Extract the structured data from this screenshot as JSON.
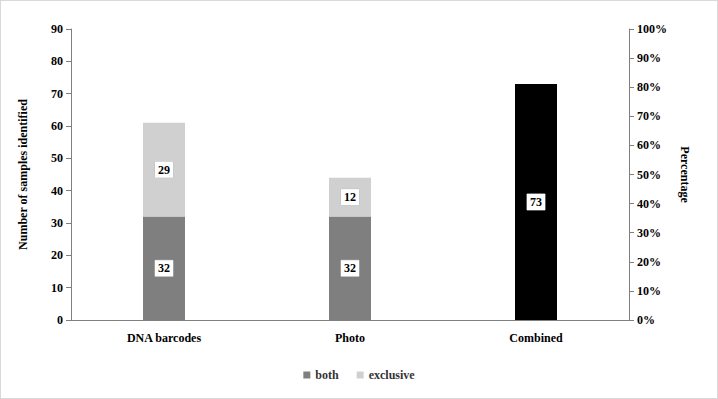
{
  "chart_data": {
    "type": "bar",
    "categories": [
      "DNA barcodes",
      "Photo",
      "Combined"
    ],
    "series": [
      {
        "name": "both",
        "color": "#7f7f7f",
        "values": [
          32,
          32,
          null
        ]
      },
      {
        "name": "exclusive",
        "color": "#d0d0d0",
        "values": [
          29,
          12,
          null
        ]
      },
      {
        "color": "#000000",
        "values": [
          null,
          null,
          73
        ]
      }
    ],
    "stacked": true,
    "data_labels": true,
    "ylabel": "Number of samples identified",
    "ylim": [
      0,
      90
    ],
    "yticks": [
      0,
      10,
      20,
      30,
      40,
      50,
      60,
      70,
      80,
      90
    ],
    "y2label": "Percentage",
    "y2lim": [
      0,
      100
    ],
    "y2ticks": [
      {
        "value": 0,
        "label": "0%"
      },
      {
        "value": 10,
        "label": "10%"
      },
      {
        "value": 20,
        "label": "20%"
      },
      {
        "value": 30,
        "label": "30%"
      },
      {
        "value": 40,
        "label": "40%"
      },
      {
        "value": 50,
        "label": "50%"
      },
      {
        "value": 60,
        "label": "60%"
      },
      {
        "value": 70,
        "label": "70%"
      },
      {
        "value": 80,
        "label": "80%"
      },
      {
        "value": 90,
        "label": "90%"
      },
      {
        "value": 100,
        "label": "100%"
      }
    ],
    "grid": false,
    "legend": "bottom"
  }
}
